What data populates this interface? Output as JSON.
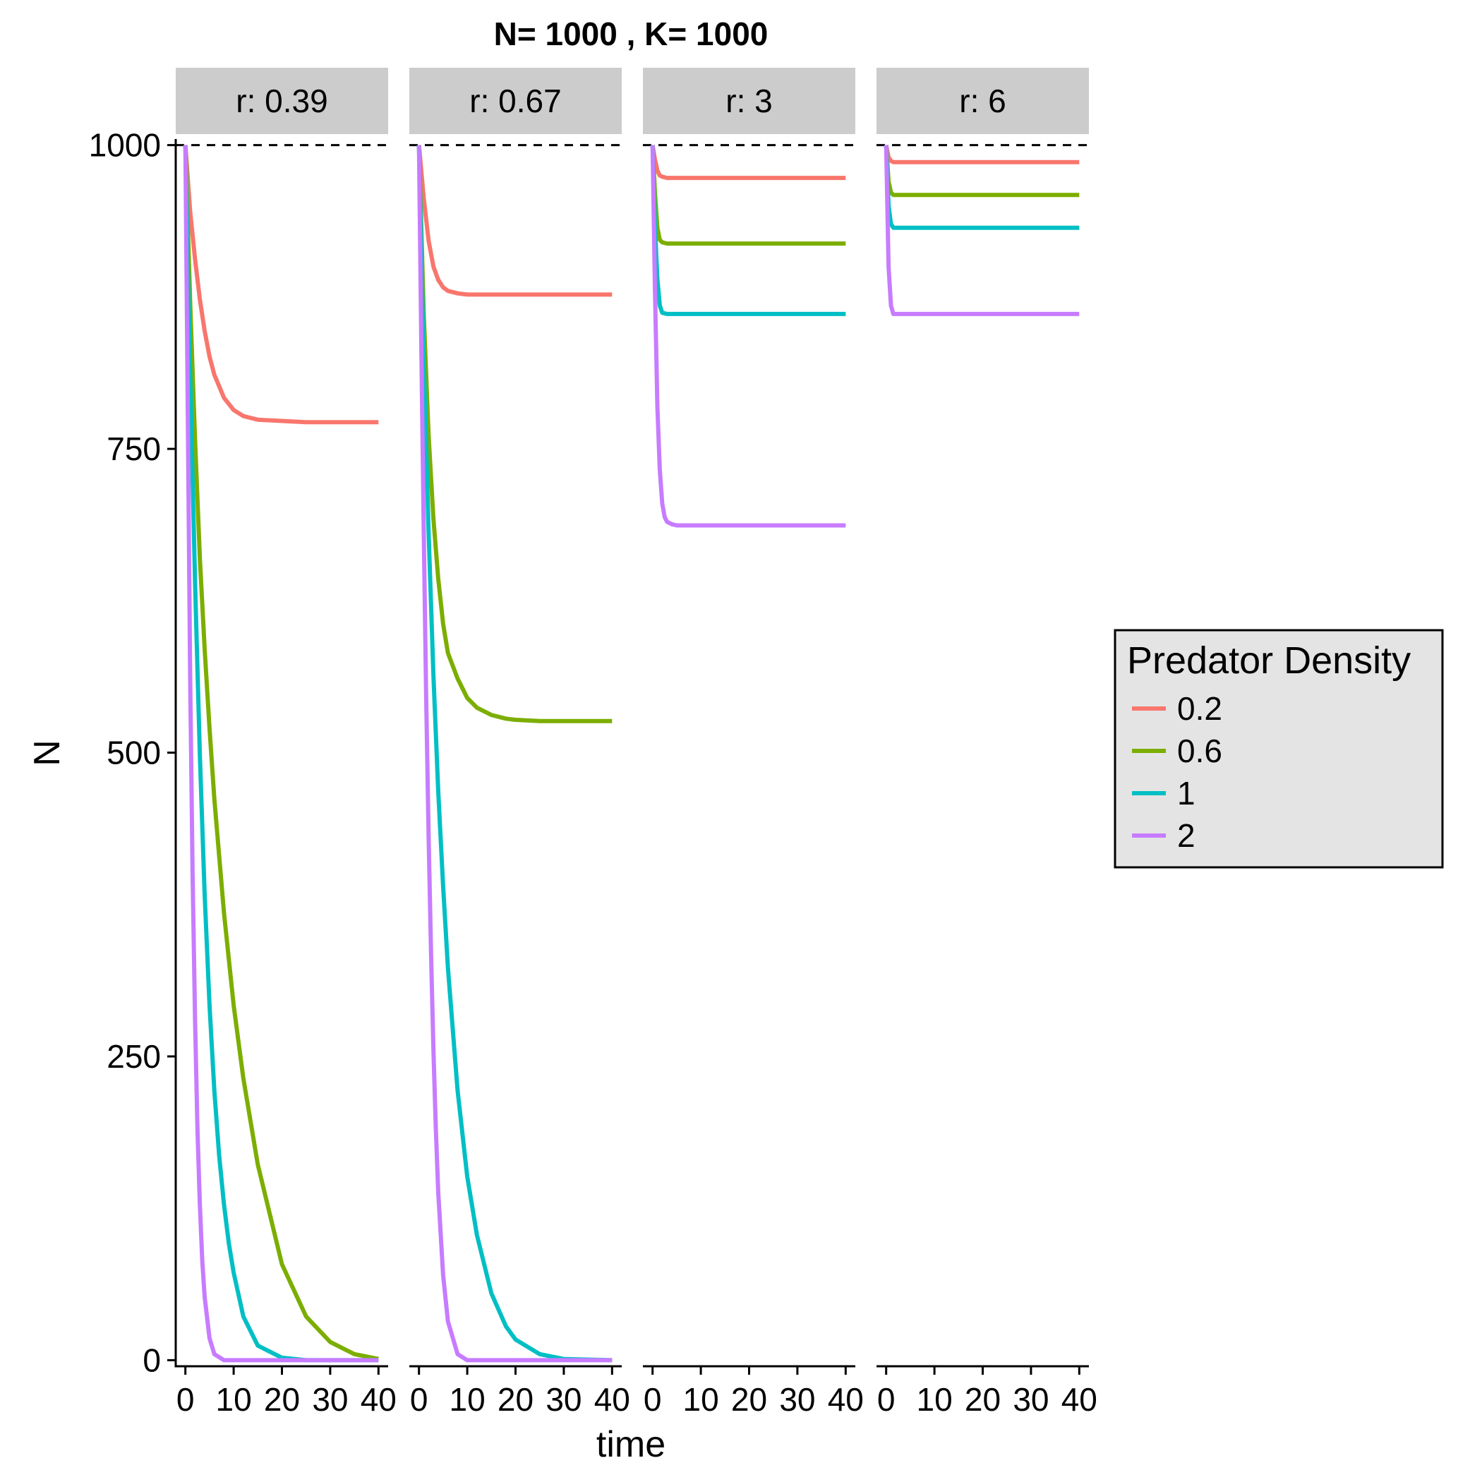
{
  "chart_data": {
    "type": "line",
    "title": "N= 1000 , K= 1000",
    "xlabel": "time",
    "ylabel": "N",
    "xlim": [
      -2,
      42
    ],
    "ylim": [
      -5,
      1005
    ],
    "x_ticks": [
      0,
      10,
      20,
      30,
      40
    ],
    "y_ticks": [
      0,
      250,
      500,
      750,
      1000
    ],
    "reference_line": {
      "y": 1000,
      "style": "dashed"
    },
    "legend": {
      "title": "Predator Density",
      "position": "right",
      "entries": [
        {
          "label": "0.2",
          "color": "#F8766D"
        },
        {
          "label": "0.6",
          "color": "#7CAE00"
        },
        {
          "label": "1",
          "color": "#00BFC4"
        },
        {
          "label": "2",
          "color": "#C77CFF"
        }
      ]
    },
    "facets": [
      {
        "strip": "r: 0.39",
        "series": [
          {
            "name": "0.2",
            "x": [
              0,
              1,
              2,
              3,
              4,
              5,
              6,
              8,
              10,
              12,
              15,
              20,
              25,
              30,
              35,
              40
            ],
            "y": [
              1000,
              945,
              906,
              873,
              847,
              826,
              811,
              792,
              782,
              777,
              774,
              773,
              772,
              772,
              772,
              772
            ]
          },
          {
            "name": "0.6",
            "x": [
              0,
              1,
              2,
              3,
              4,
              5,
              6,
              8,
              10,
              12,
              15,
              20,
              25,
              30,
              35,
              40
            ],
            "y": [
              1000,
              870,
              757,
              660,
              585,
              520,
              462,
              368,
              292,
              232,
              161,
              79,
              36,
              15,
              5,
              1
            ]
          },
          {
            "name": "1",
            "x": [
              0,
              1,
              2,
              3,
              4,
              5,
              6,
              7,
              8,
              9,
              10,
              12,
              15,
              20,
              25,
              30,
              40
            ],
            "y": [
              1000,
              810,
              640,
              498,
              383,
              292,
              222,
              168,
              128,
              96,
              72,
              36,
              12,
              2,
              0,
              0,
              0
            ]
          },
          {
            "name": "2",
            "x": [
              0,
              0.5,
              1,
              1.5,
              2,
              2.5,
              3,
              3.5,
              4,
              5,
              6,
              8,
              10,
              20,
              30,
              40
            ],
            "y": [
              1000,
              780,
              560,
              400,
              280,
              190,
              128,
              82,
              52,
              18,
              5,
              0,
              0,
              0,
              0,
              0
            ]
          }
        ]
      },
      {
        "strip": "r: 0.67",
        "series": [
          {
            "name": "0.2",
            "x": [
              0,
              1,
              2,
              3,
              4,
              5,
              6,
              8,
              10,
              15,
              20,
              30,
              40
            ],
            "y": [
              1000,
              956,
              921,
              900,
              889,
              883,
              880,
              878,
              877,
              877,
              877,
              877,
              877
            ]
          },
          {
            "name": "0.6",
            "x": [
              0,
              1,
              2,
              3,
              4,
              5,
              6,
              8,
              10,
              12,
              15,
              18,
              20,
              25,
              30,
              40
            ],
            "y": [
              1000,
              860,
              760,
              692,
              643,
              606,
              582,
              561,
              545,
              537,
              531,
              528,
              527,
              526,
              526,
              526
            ]
          },
          {
            "name": "1",
            "x": [
              0,
              1,
              2,
              3,
              4,
              5,
              6,
              8,
              10,
              12,
              15,
              18,
              20,
              25,
              30,
              40
            ],
            "y": [
              1000,
              820,
              680,
              563,
              468,
              390,
              323,
              222,
              151,
              103,
              55,
              28,
              17,
              5,
              1,
              0
            ]
          },
          {
            "name": "2",
            "x": [
              0,
              0.5,
              1,
              1.5,
              2,
              2.5,
              3,
              3.5,
              4,
              5,
              6,
              8,
              10,
              20,
              30,
              40
            ],
            "y": [
              1000,
              830,
              680,
              545,
              430,
              335,
              255,
              190,
              138,
              70,
              32,
              5,
              0,
              0,
              0,
              0
            ]
          }
        ]
      },
      {
        "strip": "r: 3",
        "series": [
          {
            "name": "0.2",
            "x": [
              0,
              0.5,
              1,
              1.5,
              2,
              3,
              5,
              10,
              20,
              30,
              40
            ],
            "y": [
              1000,
              988,
              979,
              975,
              974,
              973,
              973,
              973,
              973,
              973,
              973
            ]
          },
          {
            "name": "0.6",
            "x": [
              0,
              0.5,
              1,
              1.5,
              2,
              3,
              5,
              10,
              20,
              30,
              40
            ],
            "y": [
              1000,
              960,
              932,
              922,
              920,
              919,
              919,
              919,
              919,
              919,
              919
            ]
          },
          {
            "name": "1",
            "x": [
              0,
              0.5,
              1,
              1.5,
              2,
              3,
              5,
              10,
              20,
              30,
              40
            ],
            "y": [
              1000,
              932,
              890,
              868,
              862,
              861,
              861,
              861,
              861,
              861,
              861
            ]
          },
          {
            "name": "2",
            "x": [
              0,
              0.5,
              1,
              1.5,
              2,
              2.5,
              3,
              4,
              5,
              10,
              20,
              30,
              40
            ],
            "y": [
              1000,
              880,
              785,
              733,
              705,
              694,
              690,
              688,
              687,
              687,
              687,
              687,
              687
            ]
          }
        ]
      },
      {
        "strip": "r: 6",
        "series": [
          {
            "name": "0.2",
            "x": [
              0,
              0.5,
              1,
              1.5,
              2,
              5,
              10,
              20,
              30,
              40
            ],
            "y": [
              1000,
              990,
              987,
              986,
              986,
              986,
              986,
              986,
              986,
              986
            ]
          },
          {
            "name": "0.6",
            "x": [
              0,
              0.5,
              1,
              1.5,
              2,
              5,
              10,
              20,
              30,
              40
            ],
            "y": [
              1000,
              970,
              961,
              959,
              959,
              959,
              959,
              959,
              959,
              959
            ]
          },
          {
            "name": "1",
            "x": [
              0,
              0.5,
              1,
              1.5,
              2,
              5,
              10,
              20,
              30,
              40
            ],
            "y": [
              1000,
              950,
              935,
              932,
              932,
              932,
              932,
              932,
              932,
              932
            ]
          },
          {
            "name": "2",
            "x": [
              0,
              0.5,
              1,
              1.5,
              2,
              5,
              10,
              20,
              30,
              40
            ],
            "y": [
              1000,
              900,
              868,
              861,
              861,
              861,
              861,
              861,
              861,
              861
            ]
          }
        ]
      }
    ]
  }
}
